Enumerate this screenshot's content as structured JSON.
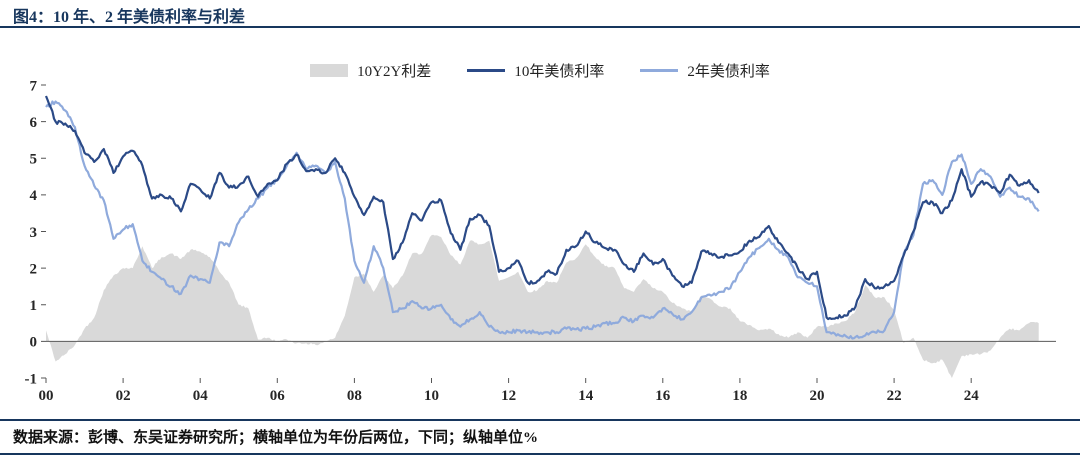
{
  "page": {
    "title": "图4：10 年、2 年美债利率与利差",
    "footer": "数据来源：彭博、东吴证券研究所；横轴单位为年份后两位，下同；纵轴单位%"
  },
  "chart_data": {
    "type": "line+area",
    "title": "10 年、2 年美债利率与利差",
    "xlabel": "年份后两位",
    "ylabel": "%",
    "ylim": [
      -1,
      7
    ],
    "y_ticks": [
      7,
      6,
      5,
      4,
      3,
      2,
      1,
      0,
      -1
    ],
    "x_range": [
      2000,
      2026.2
    ],
    "x_start": 2000,
    "x_step": 0.25,
    "x_tick_years": [
      2000,
      2002,
      2004,
      2006,
      2008,
      2010,
      2012,
      2014,
      2016,
      2018,
      2020,
      2022,
      2024
    ],
    "x_tick_labels": [
      "00",
      "02",
      "04",
      "06",
      "08",
      "10",
      "12",
      "14",
      "16",
      "18",
      "20",
      "22",
      "24"
    ],
    "grid": false,
    "legend_position": "top-center",
    "legend": [
      {
        "label": "10Y2Y利差",
        "marker": "area-swatch",
        "color": "#d9d9d9"
      },
      {
        "label": "10年美债利率",
        "marker": "line-swatch",
        "color": "#2b4a87"
      },
      {
        "label": "2年美债利率",
        "marker": "line-swatch",
        "color": "#8faadc"
      }
    ],
    "series": [
      {
        "name": "10Y2Y利差",
        "kind": "area",
        "color": "#d9d9d9",
        "values": [
          0.3,
          -0.55,
          -0.35,
          -0.1,
          0.35,
          0.65,
          1.4,
          1.8,
          2.0,
          2.0,
          2.6,
          2.0,
          2.3,
          2.4,
          2.25,
          2.5,
          2.45,
          2.3,
          1.9,
          1.6,
          1.0,
          0.9,
          0.05,
          0.1,
          0.0,
          0.05,
          -0.05,
          -0.05,
          -0.1,
          0.0,
          0.1,
          0.7,
          1.75,
          1.85,
          1.35,
          1.8,
          1.45,
          1.8,
          2.4,
          2.4,
          2.9,
          2.85,
          2.35,
          2.1,
          2.75,
          2.65,
          2.75,
          1.65,
          1.75,
          1.9,
          1.35,
          1.4,
          1.65,
          1.6,
          2.15,
          2.27,
          2.65,
          2.3,
          2.05,
          2.0,
          1.45,
          1.35,
          1.7,
          1.45,
          1.35,
          1.05,
          0.9,
          0.8,
          1.25,
          1.15,
          0.95,
          0.9,
          0.55,
          0.45,
          0.3,
          0.35,
          0.2,
          0.1,
          0.25,
          0.1,
          0.4,
          0.4,
          0.49,
          0.56,
          0.83,
          1.54,
          1.2,
          1.2,
          0.85,
          -0.05,
          0.1,
          -0.5,
          -0.6,
          -0.5,
          -1.0,
          -0.4,
          -0.35,
          -0.35,
          -0.25,
          0.1,
          0.35,
          0.3,
          0.5,
          0.5
        ]
      },
      {
        "name": "10年美债利率",
        "kind": "line",
        "color": "#2b4a87",
        "values": [
          6.7,
          6.0,
          5.95,
          5.75,
          5.15,
          4.9,
          5.25,
          4.6,
          5.05,
          5.2,
          4.8,
          3.9,
          4.0,
          3.9,
          3.55,
          4.3,
          4.15,
          3.9,
          4.6,
          4.2,
          4.25,
          4.5,
          3.95,
          4.3,
          4.4,
          4.85,
          5.1,
          4.65,
          4.7,
          4.6,
          5.0,
          4.6,
          3.95,
          3.45,
          3.95,
          3.8,
          2.25,
          2.7,
          3.5,
          3.3,
          3.8,
          3.85,
          2.95,
          2.5,
          3.35,
          3.45,
          3.15,
          1.9,
          2.0,
          2.2,
          1.6,
          1.65,
          1.9,
          1.85,
          2.5,
          2.6,
          3.0,
          2.7,
          2.55,
          2.5,
          2.1,
          1.9,
          2.4,
          2.1,
          2.25,
          1.8,
          1.5,
          1.6,
          2.45,
          2.4,
          2.3,
          2.35,
          2.45,
          2.75,
          2.85,
          3.15,
          2.7,
          2.4,
          2.0,
          1.7,
          1.9,
          0.65,
          0.65,
          0.7,
          0.95,
          1.7,
          1.45,
          1.5,
          1.65,
          2.35,
          3.0,
          3.8,
          3.8,
          3.5,
          3.85,
          4.7,
          3.95,
          4.35,
          4.25,
          4.05,
          4.55,
          4.25,
          4.4,
          4.05
        ]
      },
      {
        "name": "2年美债利率",
        "kind": "line",
        "color": "#8faadc",
        "values": [
          6.4,
          6.55,
          6.3,
          5.85,
          4.8,
          4.25,
          3.85,
          2.8,
          3.05,
          3.2,
          2.2,
          1.9,
          1.7,
          1.5,
          1.3,
          1.8,
          1.7,
          1.6,
          2.7,
          2.6,
          3.25,
          3.6,
          3.9,
          4.2,
          4.4,
          4.8,
          5.15,
          4.7,
          4.8,
          4.6,
          4.9,
          3.9,
          2.2,
          1.6,
          2.6,
          2.0,
          0.8,
          0.9,
          1.1,
          0.9,
          0.9,
          1.0,
          0.6,
          0.4,
          0.6,
          0.8,
          0.4,
          0.25,
          0.25,
          0.3,
          0.25,
          0.25,
          0.25,
          0.25,
          0.35,
          0.33,
          0.35,
          0.4,
          0.5,
          0.5,
          0.65,
          0.55,
          0.7,
          0.65,
          0.9,
          0.75,
          0.6,
          0.8,
          1.2,
          1.25,
          1.35,
          1.45,
          1.9,
          2.3,
          2.55,
          2.8,
          2.5,
          2.3,
          1.75,
          1.6,
          1.5,
          0.25,
          0.16,
          0.14,
          0.12,
          0.16,
          0.25,
          0.3,
          0.8,
          2.4,
          2.9,
          4.3,
          4.4,
          4.0,
          4.9,
          5.1,
          4.3,
          4.7,
          4.5,
          3.95,
          4.2,
          3.95,
          3.9,
          3.55
        ]
      }
    ]
  }
}
